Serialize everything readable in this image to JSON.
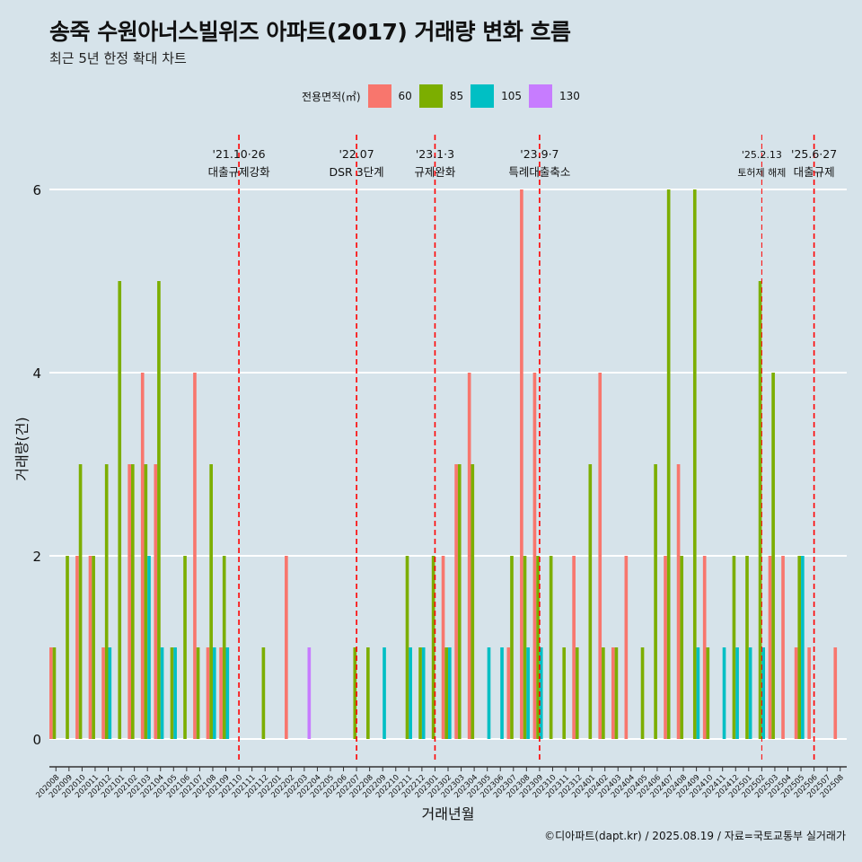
{
  "title": "송죽 수원아너스빌위즈 아파트(2017) 거래량 변화 흐름",
  "subtitle": "최근 5년 한정 확대 차트",
  "caption": "©디아파트(dapt.kr) / 2025.08.19 / 자료=국토교통부 실거래가",
  "legend": {
    "title": "전용면적(㎡)",
    "items": [
      {
        "label": "60",
        "color": "#F8766D"
      },
      {
        "label": "85",
        "color": "#7CAE00"
      },
      {
        "label": "105",
        "color": "#00BFC4"
      },
      {
        "label": "130",
        "color": "#C77CFF"
      }
    ]
  },
  "chart_data": {
    "type": "bar",
    "xlabel": "거래년월",
    "ylabel": "거래량(건)",
    "ylim": [
      0,
      6.5
    ],
    "yticks": [
      0,
      2,
      4,
      6
    ],
    "grid": true,
    "legend_position": "top",
    "categories": [
      "202008",
      "202009",
      "202010",
      "202011",
      "202012",
      "202101",
      "202102",
      "202103",
      "202104",
      "202105",
      "202106",
      "202107",
      "202108",
      "202109",
      "202110",
      "202111",
      "202112",
      "202201",
      "202202",
      "202203",
      "202204",
      "202205",
      "202206",
      "202207",
      "202208",
      "202209",
      "202210",
      "202211",
      "202212",
      "202301",
      "202302",
      "202303",
      "202304",
      "202305",
      "202306",
      "202307",
      "202308",
      "202309",
      "202310",
      "202311",
      "202312",
      "202401",
      "202402",
      "202403",
      "202404",
      "202405",
      "202406",
      "202407",
      "202408",
      "202409",
      "202410",
      "202411",
      "202412",
      "202501",
      "202502",
      "202503",
      "202504",
      "202505",
      "202506",
      "202507",
      "202508"
    ],
    "series": [
      {
        "name": "60",
        "color": "#F8766D",
        "values": [
          1,
          0,
          2,
          2,
          1,
          0,
          3,
          4,
          3,
          0,
          0,
          4,
          1,
          1,
          0,
          0,
          0,
          0,
          2,
          0,
          0,
          0,
          0,
          0,
          0,
          0,
          0,
          0,
          0,
          0,
          2,
          3,
          4,
          0,
          0,
          1,
          6,
          4,
          0,
          0,
          2,
          0,
          4,
          1,
          2,
          0,
          0,
          2,
          3,
          0,
          2,
          0,
          0,
          0,
          0,
          2,
          2,
          1,
          1,
          0,
          1
        ]
      },
      {
        "name": "85",
        "color": "#7CAE00",
        "values": [
          1,
          2,
          3,
          2,
          3,
          5,
          3,
          3,
          5,
          1,
          2,
          1,
          3,
          2,
          0,
          0,
          1,
          0,
          0,
          0,
          0,
          0,
          0,
          1,
          1,
          0,
          0,
          2,
          1,
          2,
          1,
          3,
          3,
          0,
          0,
          2,
          2,
          2,
          2,
          1,
          1,
          3,
          1,
          1,
          0,
          1,
          3,
          6,
          2,
          6,
          1,
          0,
          2,
          2,
          5,
          4,
          0,
          2,
          0,
          0,
          0
        ]
      },
      {
        "name": "105",
        "color": "#00BFC4",
        "values": [
          0,
          0,
          0,
          0,
          1,
          0,
          0,
          2,
          1,
          1,
          0,
          0,
          1,
          1,
          0,
          0,
          0,
          0,
          0,
          0,
          0,
          0,
          0,
          0,
          0,
          1,
          0,
          1,
          1,
          0,
          1,
          0,
          0,
          1,
          1,
          0,
          1,
          1,
          0,
          0,
          0,
          0,
          0,
          0,
          0,
          0,
          0,
          0,
          0,
          1,
          0,
          1,
          1,
          1,
          1,
          0,
          0,
          2,
          0,
          0,
          0
        ]
      },
      {
        "name": "130",
        "color": "#C77CFF",
        "values": [
          0,
          0,
          0,
          0,
          0,
          0,
          0,
          0,
          0,
          0,
          0,
          0,
          0,
          0,
          0,
          0,
          0,
          0,
          0,
          1,
          0,
          0,
          0,
          0,
          0,
          0,
          0,
          0,
          0,
          0,
          0,
          0,
          0,
          0,
          0,
          0,
          0,
          0,
          0,
          0,
          0,
          0,
          0,
          0,
          0,
          0,
          0,
          0,
          0,
          0,
          0,
          0,
          0,
          0,
          0,
          0,
          0,
          0,
          0,
          0,
          0
        ]
      }
    ],
    "annotations": [
      {
        "x": "202110",
        "date": "'21.10·26",
        "label": "대출규제강화",
        "small": false
      },
      {
        "x": "202207",
        "date": "'22.07",
        "label": "DSR 3단계",
        "small": false
      },
      {
        "x": "202301",
        "date": "'23.1·3",
        "label": "규제완화",
        "small": false
      },
      {
        "x": "202309",
        "date": "'23.9·7",
        "label": "특례대출축소",
        "small": false
      },
      {
        "x": "202502",
        "date": "'25.2.13",
        "label": "토허제 해제",
        "small": true
      },
      {
        "x": "202506",
        "date": "'25.6·27",
        "label": "대출규제",
        "small": false
      }
    ]
  }
}
